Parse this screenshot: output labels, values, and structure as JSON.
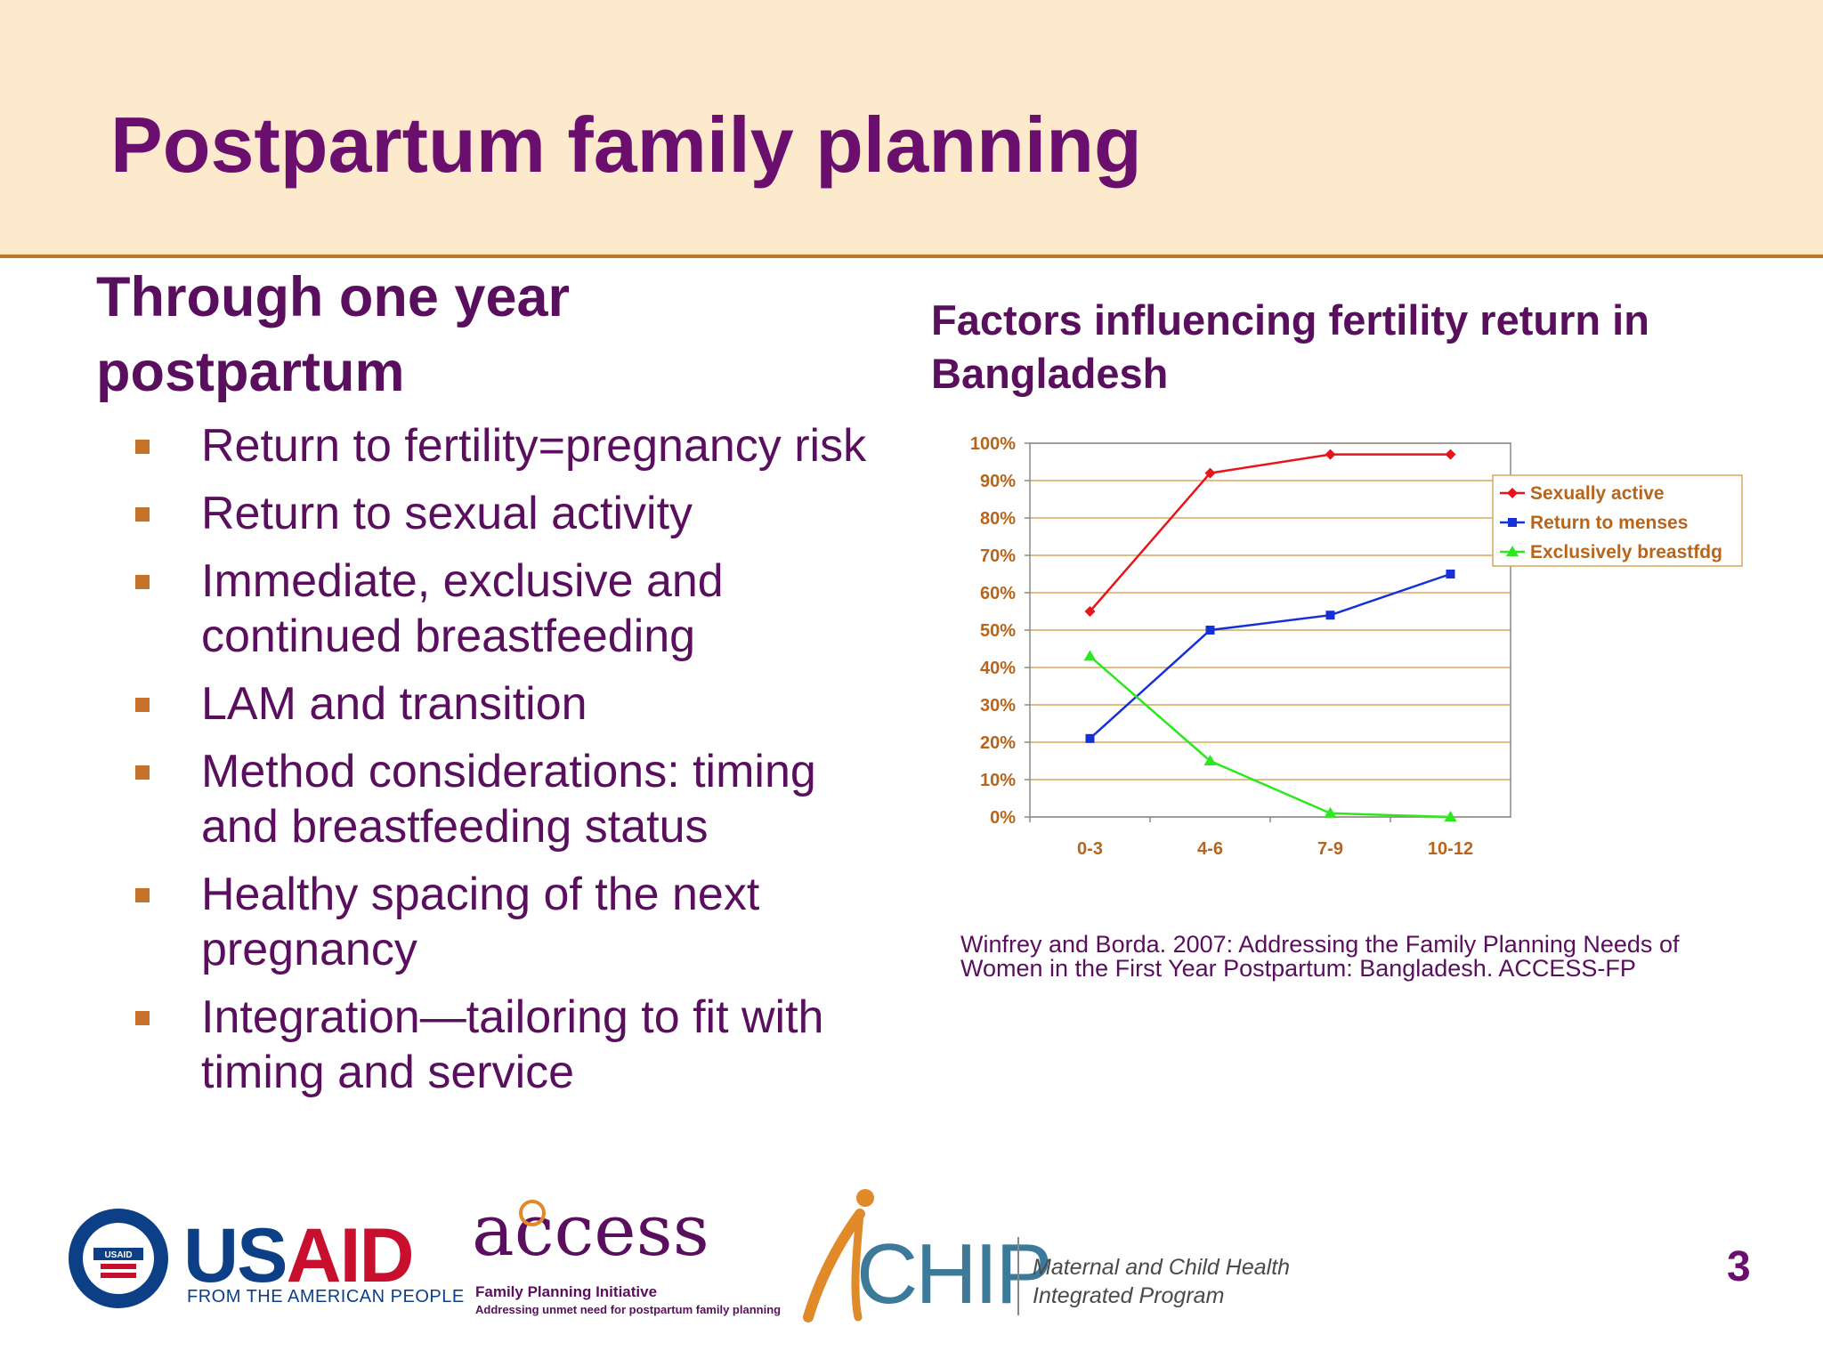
{
  "slide": {
    "title": "Postpartum family planning",
    "subhead": "Through one year postpartum",
    "bullets": [
      "Return to fertility=pregnancy risk",
      "Return to sexual activity",
      "Immediate, exclusive and continued breastfeeding",
      "LAM and transition",
      "Method considerations: timing and breastfeeding status",
      "Healthy spacing of the next pregnancy",
      "Integration—tailoring to fit with timing and service"
    ],
    "chart_heading": "Factors influencing fertility return in Bangladesh",
    "citation": "Winfrey and Borda. 2007:  Addressing the Family Planning Needs of Women in the First Year Postpartum: Bangladesh. ACCESS-FP",
    "page_number": "3"
  },
  "logos": {
    "usaid_us": "US",
    "usaid_aid": "AID",
    "usaid_tagline": "FROM THE AMERICAN PEOPLE",
    "usaid_seal_text": "USAID",
    "access_name": "access",
    "access_line1": "Family Planning Initiative",
    "access_line2": "Addressing unmet need for postpartum family planning",
    "mchip_name": "CHIP",
    "mchip_line1": "Maternal and Child Health",
    "mchip_line2": "Integrated Program"
  },
  "chart_data": {
    "type": "line",
    "title": "",
    "xlabel": "",
    "ylabel": "",
    "categories": [
      "0-3",
      "4-6",
      "7-9",
      "10-12"
    ],
    "y_ticks": [
      "0%",
      "10%",
      "20%",
      "30%",
      "40%",
      "50%",
      "60%",
      "70%",
      "80%",
      "90%",
      "100%"
    ],
    "ylim": [
      0,
      100
    ],
    "grid": true,
    "legend_position": "right",
    "series": [
      {
        "name": "Sexually active",
        "values": [
          55,
          92,
          97,
          97
        ],
        "color": "#e8141b",
        "marker": "diamond"
      },
      {
        "name": "Return to menses",
        "values": [
          21,
          50,
          54,
          65
        ],
        "color": "#1430d8",
        "marker": "square"
      },
      {
        "name": "Exclusively breastfdg",
        "values": [
          43,
          15,
          1,
          0
        ],
        "color": "#2ee81f",
        "marker": "triangle"
      }
    ],
    "tick_color": "#b8651c",
    "legend_text_color": "#b8651c"
  }
}
